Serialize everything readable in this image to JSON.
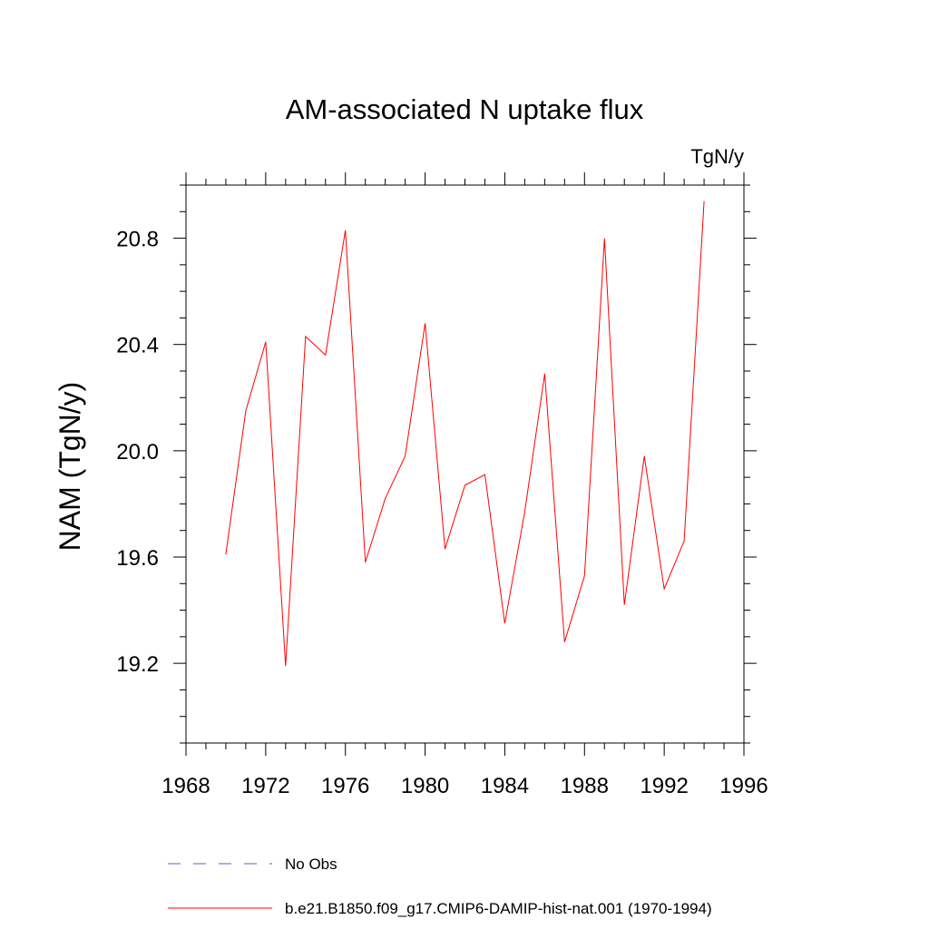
{
  "chart_data": {
    "type": "line",
    "title": "AM-associated N uptake flux",
    "units": "TgN/y",
    "xlabel": "",
    "ylabel": "NAM  (TgN/y)",
    "xlim": [
      1968,
      1996
    ],
    "ylim": [
      18.9,
      21.0
    ],
    "xticks": [
      1968,
      1972,
      1976,
      1980,
      1984,
      1988,
      1992,
      1996
    ],
    "xtick_labels": [
      "1968",
      "1972",
      "1976",
      "1980",
      "1984",
      "1988",
      "1992",
      "1996"
    ],
    "xminor_step": 1,
    "yticks": [
      19.2,
      19.6,
      20.0,
      20.4,
      20.8
    ],
    "ytick_labels": [
      "19.2",
      "19.6",
      "20.0",
      "20.4",
      "20.8"
    ],
    "yminor_step": 0.1,
    "grid": false,
    "legend_position": "bottom",
    "series": [
      {
        "name": "No Obs",
        "color": "#6a5acd",
        "dash": "dashed",
        "x": [],
        "y": []
      },
      {
        "name": "b.e21.B1850.f09_g17.CMIP6-DAMIP-hist-nat.001 (1970-1994)",
        "color": "#ff0000",
        "dash": "solid",
        "x": [
          1970,
          1971,
          1972,
          1973,
          1974,
          1975,
          1976,
          1977,
          1978,
          1979,
          1980,
          1981,
          1982,
          1983,
          1984,
          1985,
          1986,
          1987,
          1988,
          1989,
          1990,
          1991,
          1992,
          1993,
          1994
        ],
        "y": [
          19.61,
          20.15,
          20.41,
          19.19,
          20.43,
          20.36,
          20.83,
          19.58,
          19.82,
          19.98,
          20.48,
          19.63,
          19.87,
          19.91,
          19.35,
          19.77,
          20.29,
          19.28,
          19.53,
          20.8,
          19.42,
          19.98,
          19.48,
          19.66,
          20.94
        ]
      }
    ]
  }
}
